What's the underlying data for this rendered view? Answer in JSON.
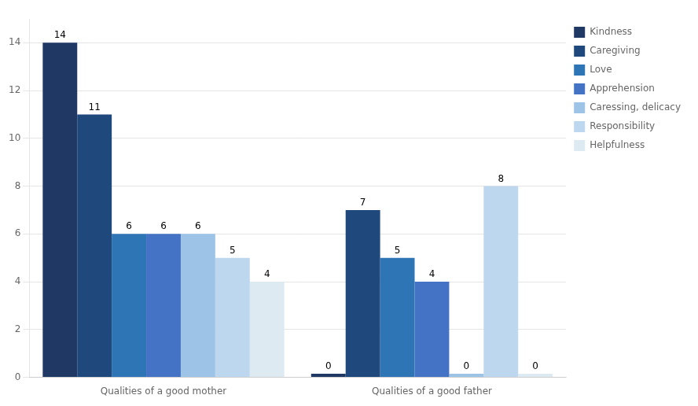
{
  "chart_data": {
    "type": "bar",
    "categories": [
      "Qualities of a good mother",
      "Qualities of a good father"
    ],
    "series": [
      {
        "name": "Kindness",
        "color": "#1F3864",
        "values": [
          14,
          0.15
        ],
        "value_labels": [
          "14",
          "0"
        ]
      },
      {
        "name": "Caregiving",
        "color": "#1F497D",
        "values": [
          11,
          7
        ],
        "value_labels": [
          "11",
          "7"
        ]
      },
      {
        "name": "Love",
        "color": "#2E75B6",
        "values": [
          6,
          5
        ],
        "value_labels": [
          "6",
          "5"
        ]
      },
      {
        "name": "Apprehension",
        "color": "#4472C4",
        "values": [
          6,
          4
        ],
        "value_labels": [
          "6",
          "4"
        ]
      },
      {
        "name": "Caressing, delicacy",
        "color": "#9DC3E6",
        "values": [
          6,
          0.15
        ],
        "value_labels": [
          "6",
          "0"
        ]
      },
      {
        "name": "Responsibility",
        "color": "#BDD7EE",
        "values": [
          5,
          8
        ],
        "value_labels": [
          "5",
          "8"
        ]
      },
      {
        "name": "Helpfulness",
        "color": "#DEEAF1",
        "values": [
          4,
          0.15
        ],
        "value_labels": [
          "4",
          "0"
        ]
      }
    ],
    "ylim": [
      0,
      15
    ],
    "yticks": [
      0,
      2,
      4,
      6,
      8,
      10,
      12,
      14
    ],
    "grid": true,
    "legend": "right",
    "data_labels": true
  }
}
